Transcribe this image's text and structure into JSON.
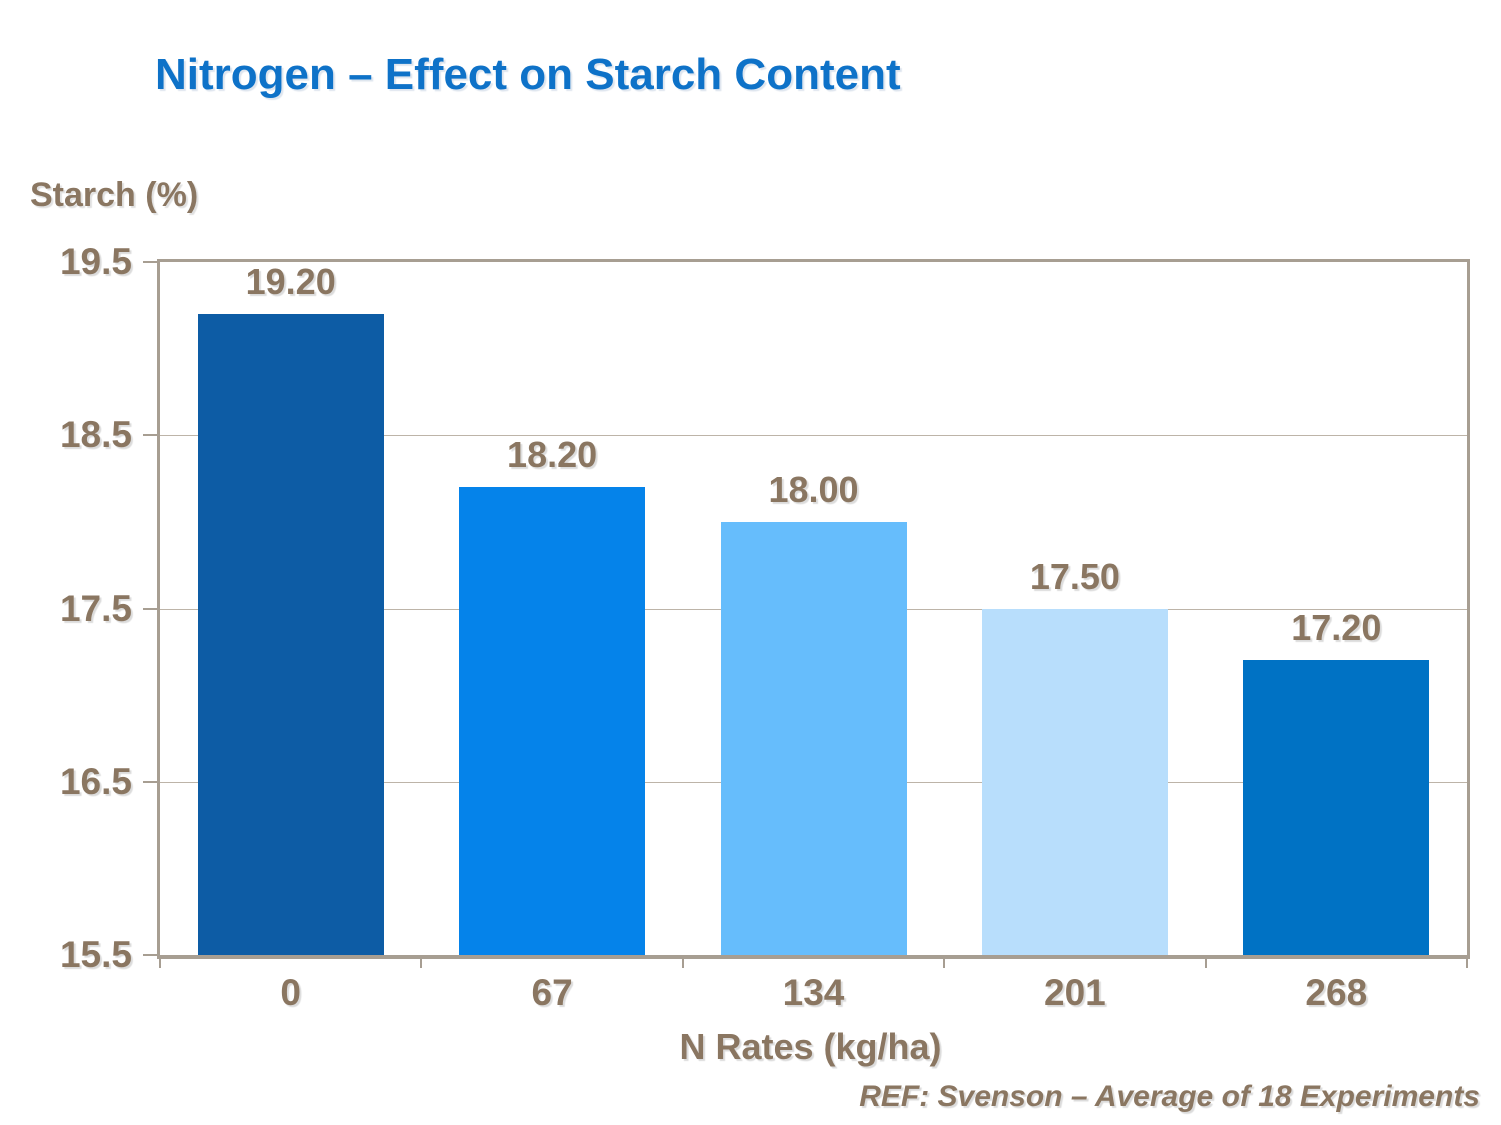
{
  "page": {
    "background": "#FFFFFF"
  },
  "chart_data": {
    "type": "bar",
    "title": "Nitrogen – Effect on Starch Content",
    "title_color": "#0E72C8",
    "ylabel": "Starch (%)",
    "xlabel": "N Rates (kg/ha)",
    "footnote": "REF: Svenson – Average of 18 Experiments",
    "categories": [
      "0",
      "67",
      "134",
      "201",
      "268"
    ],
    "values": [
      19.2,
      18.2,
      18.0,
      17.5,
      17.2
    ],
    "value_labels": [
      "19.20",
      "18.20",
      "18.00",
      "17.50",
      "17.20"
    ],
    "bar_colors": [
      "#0D5CA5",
      "#0583EA",
      "#66BDFC",
      "#B8DEFC",
      "#0072C4"
    ],
    "ylim": [
      15.5,
      19.5
    ],
    "ytick_labels": [
      "19.5",
      "18.5",
      "17.5",
      "16.5",
      "15.5"
    ],
    "ytick_values": [
      19.5,
      18.5,
      17.5,
      16.5,
      15.5
    ],
    "gridline_values": [
      18.5,
      17.5,
      16.5
    ],
    "grid": true,
    "legend": "none",
    "axis_color": "#A79E92",
    "gridline_color": "#BDB4A8",
    "label_color": "#8A7661"
  }
}
